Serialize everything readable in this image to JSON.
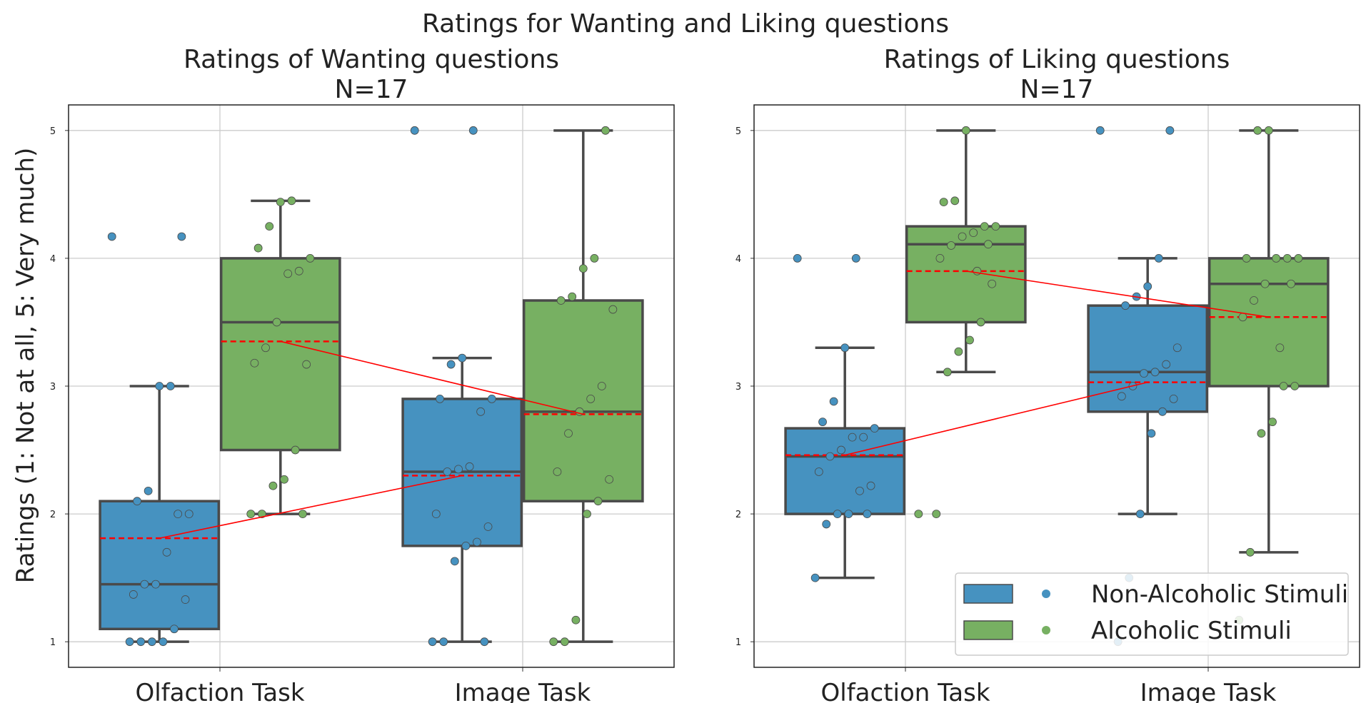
{
  "suptitle": "Ratings for Wanting and Liking questions",
  "ylabel": "Ratings (1: Not at all, 5: Very much)",
  "legend": {
    "entries": [
      "Non-Alcoholic Stimuli",
      "Alcoholic Stimuli"
    ],
    "placement": "lower-right"
  },
  "colors": {
    "non_alcoholic": "#4692c0",
    "alcoholic": "#77b062",
    "mean_line": "#ff0000",
    "box_edge": "#4a4a4a",
    "grid": "#cccccc"
  },
  "chart_data": [
    {
      "type": "box",
      "title": "Ratings of Wanting questions",
      "subtitle": "N=17",
      "categories": [
        "Olfaction Task",
        "Image Task"
      ],
      "ylim": [
        0.8,
        5.2
      ],
      "yticks": [
        1,
        2,
        3,
        4,
        5
      ],
      "grid": true,
      "series": [
        {
          "name": "Non-Alcoholic Stimuli",
          "boxes": [
            {
              "whislo": 1,
              "q1": 1.1,
              "median": 1.45,
              "q3": 2.1,
              "whishi": 3,
              "mean": 1.81,
              "fliers": [
                4.17
              ],
              "points": [
                1,
                1,
                1,
                1,
                1.1,
                1.33,
                1.37,
                1.45,
                1.45,
                1.7,
                2,
                2,
                2.1,
                2.18,
                3,
                3,
                4.17
              ]
            },
            {
              "whislo": 1,
              "q1": 1.75,
              "median": 2.33,
              "q3": 2.9,
              "whishi": 3.22,
              "mean": 2.3,
              "fliers": [
                5
              ],
              "points": [
                1,
                1,
                1.63,
                1.75,
                1.78,
                1.9,
                2,
                2.33,
                2.35,
                2.37,
                2.8,
                2.9,
                2.9,
                3.17,
                3.22,
                5,
                1
              ]
            }
          ]
        },
        {
          "name": "Alcoholic Stimuli",
          "boxes": [
            {
              "whislo": 2,
              "q1": 2.5,
              "median": 3.5,
              "q3": 4,
              "whishi": 4.45,
              "mean": 3.35,
              "fliers": [],
              "points": [
                2,
                2,
                2.22,
                2.27,
                2.5,
                3.17,
                3.18,
                3.3,
                3.5,
                3.88,
                3.9,
                4,
                4.08,
                4.25,
                4.44,
                4.45,
                2
              ]
            },
            {
              "whislo": 1,
              "q1": 2.1,
              "median": 2.8,
              "q3": 3.67,
              "whishi": 5,
              "mean": 2.78,
              "fliers": [],
              "points": [
                1,
                1,
                1.17,
                2,
                2.1,
                2.27,
                2.33,
                2.63,
                2.8,
                2.9,
                3,
                3.6,
                3.67,
                3.7,
                3.92,
                4,
                5
              ]
            }
          ]
        }
      ]
    },
    {
      "type": "box",
      "title": "Ratings of Liking questions",
      "subtitle": "N=17",
      "categories": [
        "Olfaction Task",
        "Image Task"
      ],
      "ylim": [
        0.8,
        5.2
      ],
      "yticks": [
        1,
        2,
        3,
        4,
        5
      ],
      "grid": true,
      "series": [
        {
          "name": "Non-Alcoholic Stimuli",
          "boxes": [
            {
              "whislo": 1.5,
              "q1": 2,
              "median": 2.45,
              "q3": 2.67,
              "whishi": 3.3,
              "mean": 2.46,
              "fliers": [
                4
              ],
              "points": [
                1.5,
                1.92,
                2,
                2,
                2.18,
                2.22,
                2.33,
                2.45,
                2.5,
                2.6,
                2.6,
                2.67,
                2.72,
                2.88,
                3.3,
                4,
                2
              ]
            },
            {
              "whislo": 2,
              "q1": 2.8,
              "median": 3.11,
              "q3": 3.63,
              "whishi": 4,
              "mean": 3.03,
              "fliers": [
                5
              ],
              "points": [
                1,
                1.5,
                2,
                2.63,
                2.8,
                2.9,
                2.92,
                3,
                3.1,
                3.11,
                3.17,
                3.3,
                3.63,
                3.7,
                3.78,
                4,
                5
              ]
            }
          ]
        },
        {
          "name": "Alcoholic Stimuli",
          "boxes": [
            {
              "whislo": 3.11,
              "q1": 3.5,
              "median": 4.11,
              "q3": 4.25,
              "whishi": 5,
              "mean": 3.9,
              "fliers": [
                2
              ],
              "points": [
                2,
                3.11,
                3.27,
                3.36,
                3.5,
                3.8,
                4,
                4.1,
                4.17,
                4.2,
                4.25,
                4.25,
                4.44,
                4.45,
                5,
                3.9,
                4.11
              ]
            },
            {
              "whislo": 1.7,
              "q1": 3,
              "median": 3.8,
              "q3": 4,
              "whishi": 5,
              "mean": 3.54,
              "fliers": [],
              "points": [
                1.17,
                1.7,
                2.63,
                2.72,
                3,
                3,
                3.54,
                3.67,
                3.8,
                4,
                4,
                4,
                4,
                5,
                5,
                3.3,
                3.8
              ]
            }
          ]
        }
      ]
    }
  ]
}
